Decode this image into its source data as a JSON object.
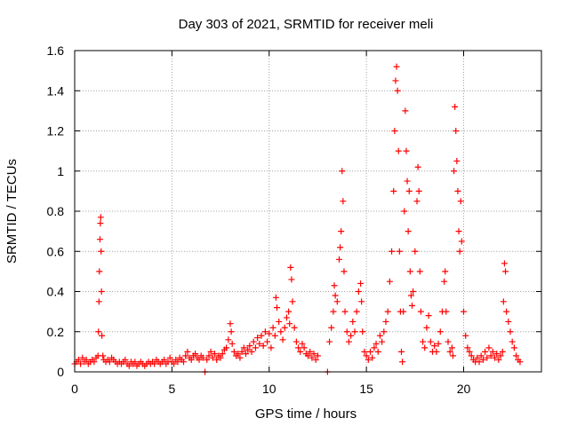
{
  "chart_data": {
    "type": "scatter",
    "title": "Day 303 of 2021, SRMTID for receiver meli",
    "xlabel": "GPS time / hours",
    "ylabel": "SRMTID / TECUs",
    "xlim": [
      0,
      24
    ],
    "ylim": [
      0,
      1.6
    ],
    "xticks": [
      0,
      5,
      10,
      15,
      20
    ],
    "yticks": [
      0,
      0.2,
      0.4,
      0.6,
      0.8,
      1,
      1.2,
      1.4,
      1.6
    ],
    "xtick_labels": [
      "0",
      "5",
      "10",
      "15",
      "20"
    ],
    "ytick_labels": [
      "0",
      "0.2",
      "0.4",
      "0.6",
      "0.8",
      "1",
      "1.2",
      "1.4",
      "1.6"
    ],
    "grid": true,
    "marker": "+",
    "color": "#ff0000",
    "series": [
      {
        "name": "meli",
        "points": [
          [
            0.0,
            0.04
          ],
          [
            0.1,
            0.05
          ],
          [
            0.2,
            0.06
          ],
          [
            0.3,
            0.04
          ],
          [
            0.4,
            0.07
          ],
          [
            0.5,
            0.05
          ],
          [
            0.6,
            0.06
          ],
          [
            0.7,
            0.04
          ],
          [
            0.8,
            0.05
          ],
          [
            0.9,
            0.06
          ],
          [
            1.0,
            0.05
          ],
          [
            1.1,
            0.07
          ],
          [
            1.2,
            0.08
          ],
          [
            1.22,
            0.2
          ],
          [
            1.25,
            0.35
          ],
          [
            1.27,
            0.5
          ],
          [
            1.3,
            0.66
          ],
          [
            1.32,
            0.74
          ],
          [
            1.34,
            0.77
          ],
          [
            1.36,
            0.6
          ],
          [
            1.38,
            0.4
          ],
          [
            1.4,
            0.18
          ],
          [
            1.45,
            0.08
          ],
          [
            1.5,
            0.06
          ],
          [
            1.6,
            0.05
          ],
          [
            1.7,
            0.06
          ],
          [
            1.8,
            0.05
          ],
          [
            1.9,
            0.07
          ],
          [
            2.0,
            0.06
          ],
          [
            2.1,
            0.05
          ],
          [
            2.2,
            0.04
          ],
          [
            2.3,
            0.05
          ],
          [
            2.4,
            0.04
          ],
          [
            2.5,
            0.05
          ],
          [
            2.6,
            0.06
          ],
          [
            2.7,
            0.04
          ],
          [
            2.8,
            0.03
          ],
          [
            2.9,
            0.05
          ],
          [
            3.0,
            0.04
          ],
          [
            3.1,
            0.05
          ],
          [
            3.2,
            0.03
          ],
          [
            3.3,
            0.04
          ],
          [
            3.4,
            0.05
          ],
          [
            3.5,
            0.04
          ],
          [
            3.6,
            0.03
          ],
          [
            3.7,
            0.04
          ],
          [
            3.8,
            0.05
          ],
          [
            3.9,
            0.04
          ],
          [
            4.0,
            0.05
          ],
          [
            4.1,
            0.04
          ],
          [
            4.2,
            0.06
          ],
          [
            4.3,
            0.05
          ],
          [
            4.4,
            0.04
          ],
          [
            4.5,
            0.05
          ],
          [
            4.6,
            0.06
          ],
          [
            4.7,
            0.04
          ],
          [
            4.8,
            0.05
          ],
          [
            4.9,
            0.07
          ],
          [
            5.0,
            0.05
          ],
          [
            5.1,
            0.04
          ],
          [
            5.2,
            0.06
          ],
          [
            5.3,
            0.05
          ],
          [
            5.4,
            0.07
          ],
          [
            5.5,
            0.06
          ],
          [
            5.6,
            0.05
          ],
          [
            5.7,
            0.08
          ],
          [
            5.8,
            0.1
          ],
          [
            5.9,
            0.07
          ],
          [
            6.0,
            0.06
          ],
          [
            6.1,
            0.08
          ],
          [
            6.2,
            0.09
          ],
          [
            6.3,
            0.07
          ],
          [
            6.4,
            0.06
          ],
          [
            6.5,
            0.08
          ],
          [
            6.6,
            0.07
          ],
          [
            6.7,
            0.0
          ],
          [
            6.8,
            0.06
          ],
          [
            6.9,
            0.08
          ],
          [
            7.0,
            0.1
          ],
          [
            7.1,
            0.07
          ],
          [
            7.2,
            0.09
          ],
          [
            7.3,
            0.06
          ],
          [
            7.4,
            0.08
          ],
          [
            7.5,
            0.07
          ],
          [
            7.6,
            0.09
          ],
          [
            7.7,
            0.11
          ],
          [
            7.8,
            0.12
          ],
          [
            7.9,
            0.16
          ],
          [
            8.0,
            0.24
          ],
          [
            8.05,
            0.2
          ],
          [
            8.1,
            0.14
          ],
          [
            8.2,
            0.1
          ],
          [
            8.3,
            0.08
          ],
          [
            8.4,
            0.09
          ],
          [
            8.5,
            0.07
          ],
          [
            8.6,
            0.1
          ],
          [
            8.7,
            0.12
          ],
          [
            8.8,
            0.09
          ],
          [
            8.9,
            0.11
          ],
          [
            9.0,
            0.13
          ],
          [
            9.1,
            0.1
          ],
          [
            9.2,
            0.15
          ],
          [
            9.3,
            0.12
          ],
          [
            9.4,
            0.17
          ],
          [
            9.5,
            0.14
          ],
          [
            9.6,
            0.18
          ],
          [
            9.7,
            0.13
          ],
          [
            9.8,
            0.2
          ],
          [
            9.9,
            0.15
          ],
          [
            10.0,
            0.19
          ],
          [
            10.1,
            0.12
          ],
          [
            10.2,
            0.22
          ],
          [
            10.3,
            0.18
          ],
          [
            10.35,
            0.37
          ],
          [
            10.4,
            0.32
          ],
          [
            10.5,
            0.25
          ],
          [
            10.6,
            0.2
          ],
          [
            10.7,
            0.16
          ],
          [
            10.8,
            0.22
          ],
          [
            10.9,
            0.27
          ],
          [
            11.0,
            0.3
          ],
          [
            11.05,
            0.24
          ],
          [
            11.1,
            0.52
          ],
          [
            11.15,
            0.46
          ],
          [
            11.2,
            0.35
          ],
          [
            11.3,
            0.22
          ],
          [
            11.4,
            0.15
          ],
          [
            11.5,
            0.12
          ],
          [
            11.6,
            0.1
          ],
          [
            11.7,
            0.14
          ],
          [
            11.8,
            0.12
          ],
          [
            11.9,
            0.09
          ],
          [
            12.0,
            0.08
          ],
          [
            12.1,
            0.1
          ],
          [
            12.2,
            0.07
          ],
          [
            12.3,
            0.09
          ],
          [
            12.4,
            0.06
          ],
          [
            12.5,
            0.08
          ],
          [
            13.0,
            0.0
          ],
          [
            13.1,
            0.15
          ],
          [
            13.2,
            0.22
          ],
          [
            13.3,
            0.3
          ],
          [
            13.35,
            0.43
          ],
          [
            13.4,
            0.38
          ],
          [
            13.5,
            0.35
          ],
          [
            13.6,
            0.56
          ],
          [
            13.65,
            0.62
          ],
          [
            13.7,
            0.7
          ],
          [
            13.75,
            1.0
          ],
          [
            13.8,
            0.85
          ],
          [
            13.85,
            0.5
          ],
          [
            13.9,
            0.3
          ],
          [
            14.0,
            0.2
          ],
          [
            14.1,
            0.15
          ],
          [
            14.2,
            0.18
          ],
          [
            14.3,
            0.25
          ],
          [
            14.4,
            0.2
          ],
          [
            14.5,
            0.3
          ],
          [
            14.6,
            0.4
          ],
          [
            14.7,
            0.44
          ],
          [
            14.75,
            0.35
          ],
          [
            14.8,
            0.2
          ],
          [
            14.9,
            0.1
          ],
          [
            15.0,
            0.08
          ],
          [
            15.1,
            0.06
          ],
          [
            15.2,
            0.1
          ],
          [
            15.3,
            0.07
          ],
          [
            15.4,
            0.12
          ],
          [
            15.5,
            0.14
          ],
          [
            15.6,
            0.1
          ],
          [
            15.7,
            0.18
          ],
          [
            15.8,
            0.15
          ],
          [
            15.9,
            0.2
          ],
          [
            16.0,
            0.25
          ],
          [
            16.1,
            0.3
          ],
          [
            16.2,
            0.45
          ],
          [
            16.3,
            0.6
          ],
          [
            16.4,
            0.9
          ],
          [
            16.45,
            1.2
          ],
          [
            16.5,
            1.45
          ],
          [
            16.55,
            1.52
          ],
          [
            16.6,
            1.4
          ],
          [
            16.65,
            1.1
          ],
          [
            16.7,
            0.6
          ],
          [
            16.75,
            0.3
          ],
          [
            16.8,
            0.1
          ],
          [
            16.85,
            0.05
          ],
          [
            16.9,
            0.3
          ],
          [
            16.95,
            0.8
          ],
          [
            17.0,
            1.3
          ],
          [
            17.05,
            1.1
          ],
          [
            17.1,
            0.95
          ],
          [
            17.15,
            0.7
          ],
          [
            17.2,
            0.9
          ],
          [
            17.25,
            0.5
          ],
          [
            17.3,
            0.38
          ],
          [
            17.35,
            0.33
          ],
          [
            17.4,
            0.4
          ],
          [
            17.5,
            0.6
          ],
          [
            17.6,
            0.85
          ],
          [
            17.65,
            1.02
          ],
          [
            17.7,
            0.9
          ],
          [
            17.75,
            0.5
          ],
          [
            17.8,
            0.3
          ],
          [
            17.9,
            0.15
          ],
          [
            18.0,
            0.12
          ],
          [
            18.1,
            0.22
          ],
          [
            18.2,
            0.28
          ],
          [
            18.3,
            0.15
          ],
          [
            18.4,
            0.1
          ],
          [
            18.5,
            0.13
          ],
          [
            18.6,
            0.1
          ],
          [
            18.7,
            0.14
          ],
          [
            18.8,
            0.2
          ],
          [
            18.9,
            0.3
          ],
          [
            19.0,
            0.45
          ],
          [
            19.05,
            0.5
          ],
          [
            19.1,
            0.3
          ],
          [
            19.2,
            0.15
          ],
          [
            19.3,
            0.1
          ],
          [
            19.4,
            0.12
          ],
          [
            19.45,
            0.08
          ],
          [
            19.5,
            1.0
          ],
          [
            19.55,
            1.32
          ],
          [
            19.6,
            1.2
          ],
          [
            19.65,
            1.05
          ],
          [
            19.7,
            0.9
          ],
          [
            19.75,
            0.7
          ],
          [
            19.8,
            0.6
          ],
          [
            19.85,
            0.85
          ],
          [
            19.9,
            0.65
          ],
          [
            20.0,
            0.3
          ],
          [
            20.1,
            0.18
          ],
          [
            20.2,
            0.12
          ],
          [
            20.3,
            0.1
          ],
          [
            20.4,
            0.08
          ],
          [
            20.5,
            0.06
          ],
          [
            20.6,
            0.05
          ],
          [
            20.7,
            0.07
          ],
          [
            20.8,
            0.05
          ],
          [
            20.9,
            0.08
          ],
          [
            21.0,
            0.06
          ],
          [
            21.1,
            0.1
          ],
          [
            21.2,
            0.07
          ],
          [
            21.3,
            0.12
          ],
          [
            21.4,
            0.08
          ],
          [
            21.5,
            0.1
          ],
          [
            21.6,
            0.07
          ],
          [
            21.7,
            0.09
          ],
          [
            21.8,
            0.06
          ],
          [
            21.9,
            0.08
          ],
          [
            22.0,
            0.1
          ],
          [
            22.05,
            0.35
          ],
          [
            22.1,
            0.54
          ],
          [
            22.15,
            0.5
          ],
          [
            22.2,
            0.3
          ],
          [
            22.3,
            0.25
          ],
          [
            22.4,
            0.2
          ],
          [
            22.5,
            0.15
          ],
          [
            22.6,
            0.12
          ],
          [
            22.7,
            0.08
          ],
          [
            22.8,
            0.06
          ],
          [
            22.9,
            0.05
          ]
        ]
      }
    ]
  }
}
